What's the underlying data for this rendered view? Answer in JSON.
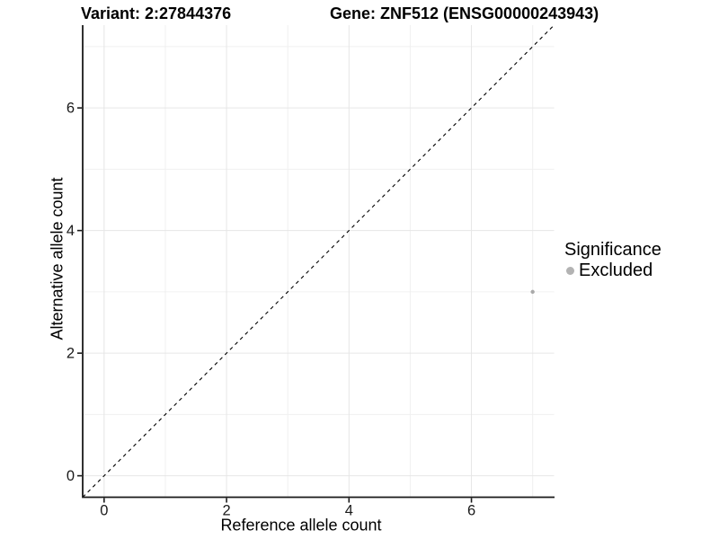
{
  "chart_data": {
    "type": "scatter",
    "title_left": "Variant: 2:27844376",
    "title_right": "Gene: ZNF512 (ENSG00000243943)",
    "xlabel": "Reference allele count",
    "ylabel": "Alternative allele count",
    "xlim": [
      -0.35,
      7.35
    ],
    "ylim": [
      -0.35,
      7.35
    ],
    "x_major_ticks": [
      0,
      2,
      4,
      6
    ],
    "y_major_ticks": [
      0,
      2,
      4,
      6
    ],
    "x_minor_ticks": [
      1,
      3,
      5,
      7
    ],
    "y_minor_ticks": [
      1,
      3,
      5,
      7
    ],
    "grid": true,
    "reference_line": {
      "kind": "identity",
      "style": "dashed",
      "from": [
        -0.35,
        -0.35
      ],
      "to": [
        7.35,
        7.35
      ],
      "color": "#000000"
    },
    "series": [
      {
        "name": "Excluded",
        "color": "#a9a9a9",
        "points": [
          {
            "x": 7,
            "y": 3
          }
        ]
      }
    ],
    "legend": {
      "title": "Significance",
      "position": "right",
      "items": [
        {
          "label": "Excluded",
          "color": "#b3b3b3"
        }
      ]
    },
    "colors": {
      "background": "#ffffff",
      "grid_major": "#e6e6e6",
      "grid_minor": "#f0f0f0",
      "axis_line": "#1a1a1a",
      "tick_label": "#1a1a1a",
      "point": "#a9a9a9"
    }
  }
}
